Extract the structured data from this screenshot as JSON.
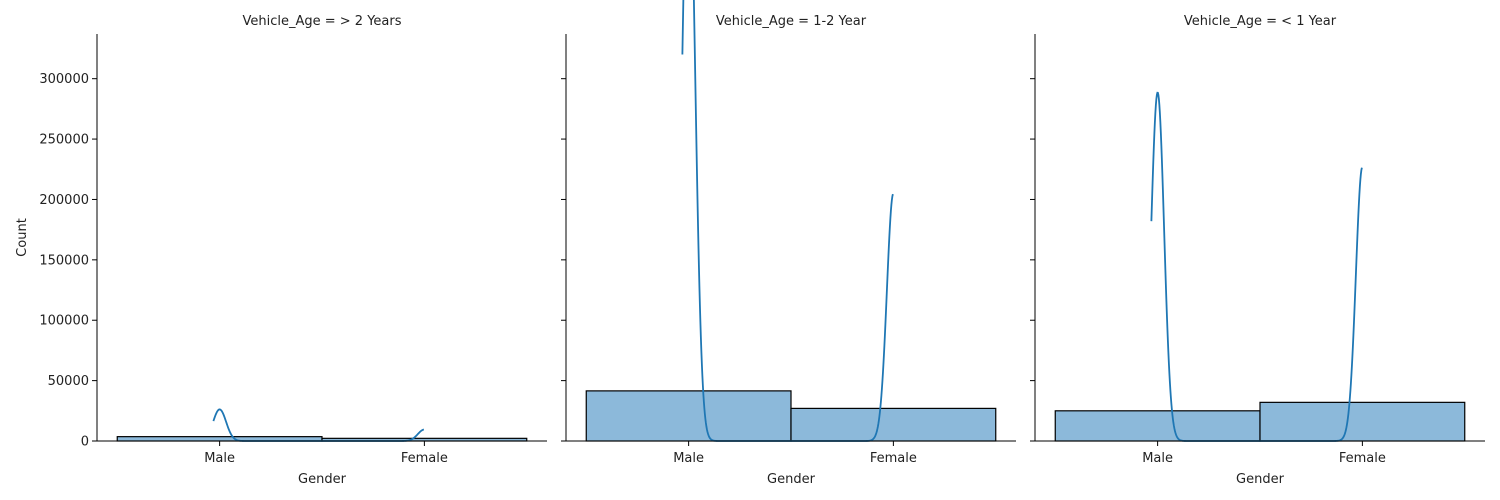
{
  "chart_data": {
    "type": "bar",
    "layout": "facet-grid",
    "facet_variable": "Vehicle_Age",
    "xlabel": "Gender",
    "ylabel": "Count",
    "categories": [
      "Male",
      "Female"
    ],
    "ylim": [
      0,
      337000
    ],
    "yticks": [
      0,
      50000,
      100000,
      150000,
      200000,
      250000,
      300000
    ],
    "grid": false,
    "colors": {
      "bar_fill": "#8cb9da",
      "bar_edge": "#000000",
      "kde_line": "#1f77b4"
    },
    "panels": [
      {
        "title": "Vehicle_Age = > 2 Years",
        "values": [
          3600,
          2200
        ],
        "kde_peaks": [
          16500,
          9500
        ]
      },
      {
        "title": "Vehicle_Age = 1-2 Year",
        "values": [
          41500,
          27000
        ],
        "kde_peaks": [
          320000,
          205000
        ]
      },
      {
        "title": "Vehicle_Age = < 1 Year",
        "values": [
          25000,
          32000
        ],
        "kde_peaks": [
          182000,
          227000
        ]
      }
    ]
  }
}
